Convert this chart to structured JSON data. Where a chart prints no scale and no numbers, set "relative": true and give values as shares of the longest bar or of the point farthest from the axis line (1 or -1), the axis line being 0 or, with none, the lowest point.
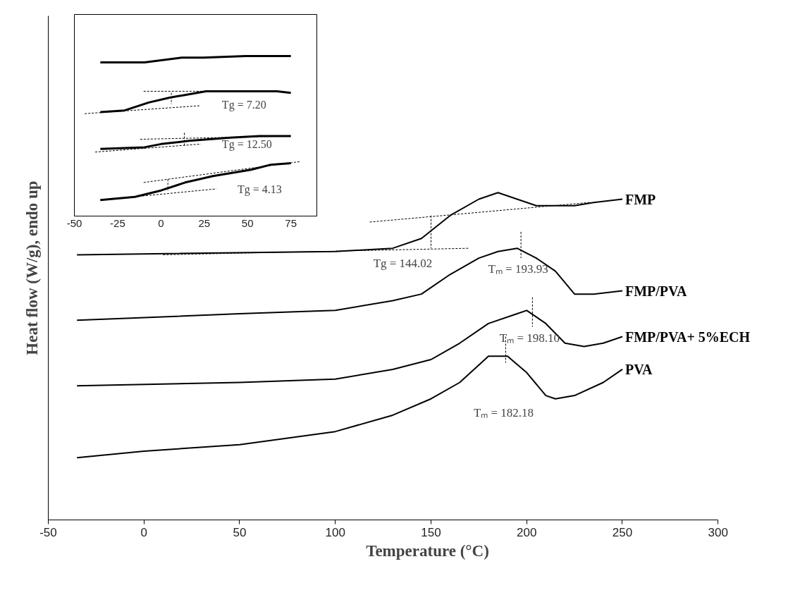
{
  "chart_data": [
    {
      "type": "line",
      "xlabel": "Temperature (°C)",
      "ylabel": "Heat flow (W/g), endo up",
      "relative": true,
      "xlim": [
        -50,
        300
      ],
      "xticks": [
        -50,
        0,
        50,
        100,
        150,
        200,
        250,
        300
      ],
      "series": [
        {
          "name": "FMP",
          "color": "#000000",
          "x": [
            -35,
            100,
            130,
            145,
            160,
            175,
            185,
            195,
            205,
            215,
            225,
            235,
            250
          ],
          "values": [
            0.81,
            0.82,
            0.83,
            0.86,
            0.93,
            0.98,
            1.0,
            0.98,
            0.96,
            0.96,
            0.96,
            0.97,
            0.98
          ]
        },
        {
          "name": "FMP/PVA",
          "color": "#000000",
          "x": [
            -35,
            50,
            100,
            130,
            145,
            160,
            175,
            185,
            195,
            205,
            215,
            225,
            235,
            250
          ],
          "values": [
            0.61,
            0.63,
            0.64,
            0.67,
            0.69,
            0.75,
            0.8,
            0.82,
            0.83,
            0.8,
            0.76,
            0.69,
            0.69,
            0.7
          ]
        },
        {
          "name": "FMP/PVA+ 5%ECH",
          "color": "#000000",
          "x": [
            -35,
            50,
            100,
            130,
            150,
            165,
            180,
            195,
            200,
            210,
            220,
            230,
            240,
            250
          ],
          "values": [
            0.41,
            0.42,
            0.43,
            0.46,
            0.49,
            0.54,
            0.6,
            0.63,
            0.64,
            0.6,
            0.54,
            0.53,
            0.54,
            0.56
          ]
        },
        {
          "name": "PVA",
          "color": "#000000",
          "x": [
            -35,
            0,
            50,
            100,
            130,
            150,
            165,
            180,
            190,
            200,
            210,
            215,
            225,
            240,
            250
          ],
          "values": [
            0.19,
            0.21,
            0.23,
            0.27,
            0.32,
            0.37,
            0.42,
            0.5,
            0.5,
            0.45,
            0.38,
            0.37,
            0.38,
            0.42,
            0.46
          ]
        },
        {
          "color": "#000000",
          "line_style": "dashed",
          "x": [
            10,
            170
          ],
          "values": [
            0.81,
            0.83
          ]
        },
        {
          "color": "#000000",
          "line_style": "dashed",
          "x": [
            118,
            233
          ],
          "values": [
            0.91,
            0.97
          ]
        },
        {
          "color": "#000000",
          "line_style": "dashed",
          "x": [
            150,
            150
          ],
          "values": [
            0.93,
            0.83
          ]
        },
        {
          "color": "#000000",
          "line_style": "dashed",
          "x": [
            197,
            197
          ],
          "values": [
            0.88,
            0.8
          ]
        },
        {
          "color": "#000000",
          "line_style": "dashed",
          "x": [
            203,
            203
          ],
          "values": [
            0.68,
            0.59
          ]
        },
        {
          "color": "#000000",
          "line_style": "dashed",
          "x": [
            189,
            189
          ],
          "values": [
            0.56,
            0.48
          ]
        }
      ],
      "annotations": [
        {
          "text": "Tg = 144.02",
          "x": 150,
          "y": 0.83
        },
        {
          "text": "Tₘ = 193.93",
          "x": 197,
          "y": 0.8
        },
        {
          "text": "Tₘ = 198.10",
          "x": 203,
          "y": 0.59
        },
        "Tₘ = 182.18"
      ]
    },
    {
      "type": "line",
      "relative": true,
      "xlim": [
        -50,
        90
      ],
      "xticks": [
        -50,
        -25,
        0,
        25,
        50,
        75
      ],
      "series": [
        {
          "color": "#000000",
          "x": [
            -35,
            -19,
            -9.5,
            12,
            24.5,
            49,
            75
          ],
          "values": [
            0.96,
            0.96,
            0.96,
            0.99,
            0.99,
            1.0,
            1.0
          ]
        },
        {
          "color": "#000000",
          "x": [
            -35,
            -21,
            -7,
            5,
            26,
            67,
            75
          ],
          "values": [
            0.65,
            0.66,
            0.71,
            0.74,
            0.78,
            0.78,
            0.77
          ]
        },
        {
          "color": "#000000",
          "x": [
            -35,
            -9.5,
            0,
            16,
            40,
            57,
            75
          ],
          "values": [
            0.42,
            0.43,
            0.45,
            0.47,
            0.49,
            0.5,
            0.5
          ]
        },
        {
          "color": "#000000",
          "x": [
            -35,
            -15,
            0,
            14,
            30,
            52,
            63,
            75
          ],
          "values": [
            0.1,
            0.12,
            0.16,
            0.21,
            0.25,
            0.29,
            0.32,
            0.33
          ]
        },
        {
          "color": "#000000",
          "line_style": "dashed",
          "x": [
            -44,
            23
          ],
          "values": [
            0.64,
            0.69
          ]
        },
        {
          "color": "#000000",
          "line_style": "dashed",
          "x": [
            -10,
            68
          ],
          "values": [
            0.78,
            0.78
          ]
        },
        {
          "color": "#000000",
          "line_style": "dashed",
          "x": [
            6,
            6
          ],
          "values": [
            0.77,
            0.7
          ]
        },
        {
          "color": "#000000",
          "line_style": "dashed",
          "x": [
            -38,
            23
          ],
          "values": [
            0.4,
            0.45
          ]
        },
        {
          "color": "#000000",
          "line_style": "dashed",
          "x": [
            -12,
            75
          ],
          "values": [
            0.48,
            0.5
          ]
        },
        {
          "color": "#000000",
          "line_style": "dashed",
          "x": [
            13.5,
            13.5
          ],
          "values": [
            0.52,
            0.44
          ]
        },
        {
          "color": "#000000",
          "line_style": "dashed",
          "x": [
            -35,
            32
          ],
          "values": [
            0.1,
            0.17
          ]
        },
        {
          "color": "#000000",
          "line_style": "dashed",
          "x": [
            -10,
            80
          ],
          "values": [
            0.21,
            0.34
          ]
        },
        {
          "color": "#000000",
          "line_style": "dashed",
          "x": [
            4,
            4
          ],
          "values": [
            0.23,
            0.16
          ]
        }
      ],
      "annotations": [
        {
          "text": "Tg = 7.20",
          "x": 23,
          "y": 0.69
        },
        {
          "text": "Tg = 12.50",
          "x": 23,
          "y": 0.45
        },
        {
          "text": "Tg = 4.13",
          "x": 32,
          "y": 0.17
        }
      ]
    }
  ]
}
